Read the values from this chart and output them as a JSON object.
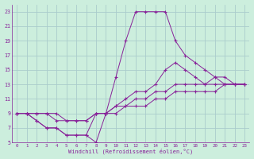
{
  "xlabel": "Windchill (Refroidissement éolien,°C)",
  "bg_color": "#cceedd",
  "grid_color": "#aacccc",
  "line_color": "#882299",
  "xlim": [
    -0.5,
    23.5
  ],
  "ylim": [
    5,
    24
  ],
  "yticks": [
    5,
    7,
    9,
    11,
    13,
    15,
    17,
    19,
    21,
    23
  ],
  "xticks": [
    0,
    1,
    2,
    3,
    4,
    5,
    6,
    7,
    8,
    9,
    10,
    11,
    12,
    13,
    14,
    15,
    16,
    17,
    18,
    19,
    20,
    21,
    22,
    23
  ],
  "series1_x": [
    0,
    1,
    2,
    3,
    4,
    5,
    6,
    7,
    8,
    9,
    10,
    11,
    12,
    13,
    14,
    15,
    16,
    17,
    18,
    19,
    20,
    21,
    22,
    23
  ],
  "series1_y": [
    9,
    9,
    8,
    7,
    7,
    6,
    6,
    6,
    5,
    9,
    14,
    19,
    23,
    23,
    23,
    23,
    19,
    17,
    16,
    15,
    14,
    13,
    13,
    13
  ],
  "series2_x": [
    0,
    1,
    2,
    3,
    4,
    5,
    6,
    7,
    8,
    9,
    10,
    11,
    12,
    13,
    14,
    15,
    16,
    17,
    18,
    19,
    20,
    21,
    22,
    23
  ],
  "series2_y": [
    9,
    9,
    8,
    7,
    7,
    6,
    6,
    6,
    9,
    9,
    10,
    11,
    12,
    12,
    13,
    15,
    16,
    15,
    14,
    13,
    14,
    14,
    13,
    13
  ],
  "series3_x": [
    0,
    1,
    2,
    3,
    4,
    5,
    6,
    7,
    8,
    9,
    10,
    11,
    12,
    13,
    14,
    15,
    16,
    17,
    18,
    19,
    20,
    21,
    22,
    23
  ],
  "series3_y": [
    9,
    9,
    9,
    9,
    8,
    8,
    8,
    8,
    9,
    9,
    10,
    10,
    11,
    11,
    12,
    12,
    13,
    13,
    13,
    13,
    13,
    13,
    13,
    13
  ],
  "series4_x": [
    0,
    1,
    2,
    3,
    4,
    5,
    6,
    7,
    8,
    9,
    10,
    11,
    12,
    13,
    14,
    15,
    16,
    17,
    18,
    19,
    20,
    21,
    22,
    23
  ],
  "series4_y": [
    9,
    9,
    9,
    9,
    9,
    8,
    8,
    8,
    9,
    9,
    9,
    10,
    10,
    10,
    11,
    11,
    12,
    12,
    12,
    12,
    12,
    13,
    13,
    13
  ]
}
